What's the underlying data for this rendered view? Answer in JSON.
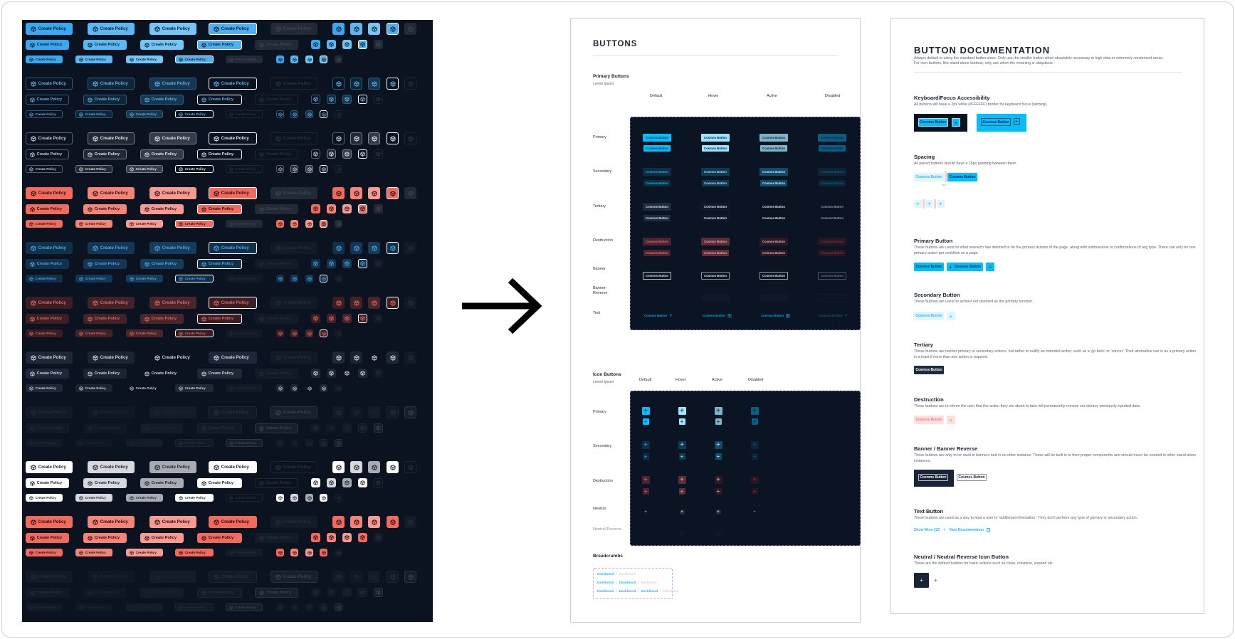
{
  "left_panel": {
    "button_label": "Create Policy",
    "icon": "cube-icon",
    "group_count": 11
  },
  "arrow": {
    "icon": "arrow-right-icon"
  },
  "buttons_page": {
    "title": "BUTTONS",
    "primary_section": {
      "heading": "Primary Buttons",
      "subtitle": "Lorem Ipsum",
      "columns": [
        "Default",
        "Hover",
        "Active",
        "Disabled"
      ],
      "rows": [
        "Primary",
        "Secondary",
        "Tertiary",
        "Destruction",
        "Banner",
        "Banner-Reverse",
        "Text"
      ],
      "button_label": "Cosmos Button"
    },
    "icon_section": {
      "heading": "Icon Buttons",
      "subtitle": "Lorem Ipsum",
      "columns": [
        "Default",
        "Hover",
        "Active",
        "Disabled"
      ],
      "rows": [
        "Primary",
        "Secondary",
        "Destruction",
        "Neutral",
        "Neutral-Reverse"
      ],
      "icon": "plus-icon"
    },
    "breadcrumbs": {
      "heading": "Breadcrumbs",
      "rows": [
        [
          "Dashboard",
          "Dashboard"
        ],
        [
          "Dashboard",
          "Dashboard",
          "Dashboard"
        ],
        [
          "Dashboard",
          "Dashboard",
          "Dashboard",
          "Dashboard"
        ]
      ]
    }
  },
  "documentation": {
    "title": "BUTTON DOCUMENTATION",
    "intro": [
      "Always default to using the standard button sizes.  Only use the smaller button when absolutely necessary in high data or extremely condensed areas.",
      "For icon buttons, like stand alone buttons, only use when the meaning is ubiquitous."
    ],
    "sections": {
      "focus": {
        "heading": "Keyboard/Focus Accessibility",
        "text": "All buttons will have a 2px white (#FFFFFF) border for keyboard focus (tabbing)."
      },
      "spacing": {
        "heading": "Spacing",
        "text": "All paired buttons should have a 16px padding between them.",
        "measure": "16px"
      },
      "primary": {
        "heading": "Primary Button",
        "text": "These buttons are used for what research has deemed to be the primary actions of the page, along with submissions or confirmations of any type. There can only be one primary action per workflow on a page."
      },
      "secondary": {
        "heading": "Secondary Button",
        "text": "These buttons are used for actions not deemed as the primary function."
      },
      "tertiary": {
        "heading": "Tertiary",
        "text": "These buttons are neither primary or secondary actions, but rather to nullify an intended action, such as a 'go back' or 'cancel.' Their alternative use is as a primary action in a toast if more than one action is required."
      },
      "destruction": {
        "heading": "Destruction",
        "text": "These buttons are to inform the user that the action they are about to take will permanently remove oor destroy previously inputted data."
      },
      "banner": {
        "heading": "Banner / Banner Reverse",
        "text": "These buttons are only to be used in banners and in no other instance.  These will be built in to their proper components and should never be needed in other stand alone instances."
      },
      "text_button": {
        "heading": "Text Button",
        "text": "These buttons are used as a way to lead a user to 'additional information.' They don't perform any type of primary or secondary action.",
        "link1": "Show More (12)",
        "link2": "View Documentation"
      },
      "neutral": {
        "heading": "Neutral / Neutral Reverse Icon Button",
        "text": "These are the default buttons for basic actions such as close, minimize, expand etc."
      }
    },
    "button_label": "Cosmos Button"
  },
  "colors": {
    "primary": "#00BFFF",
    "dark": "#0B1423",
    "destruction": "#F06A5E",
    "focus": "#FFFFFF"
  }
}
